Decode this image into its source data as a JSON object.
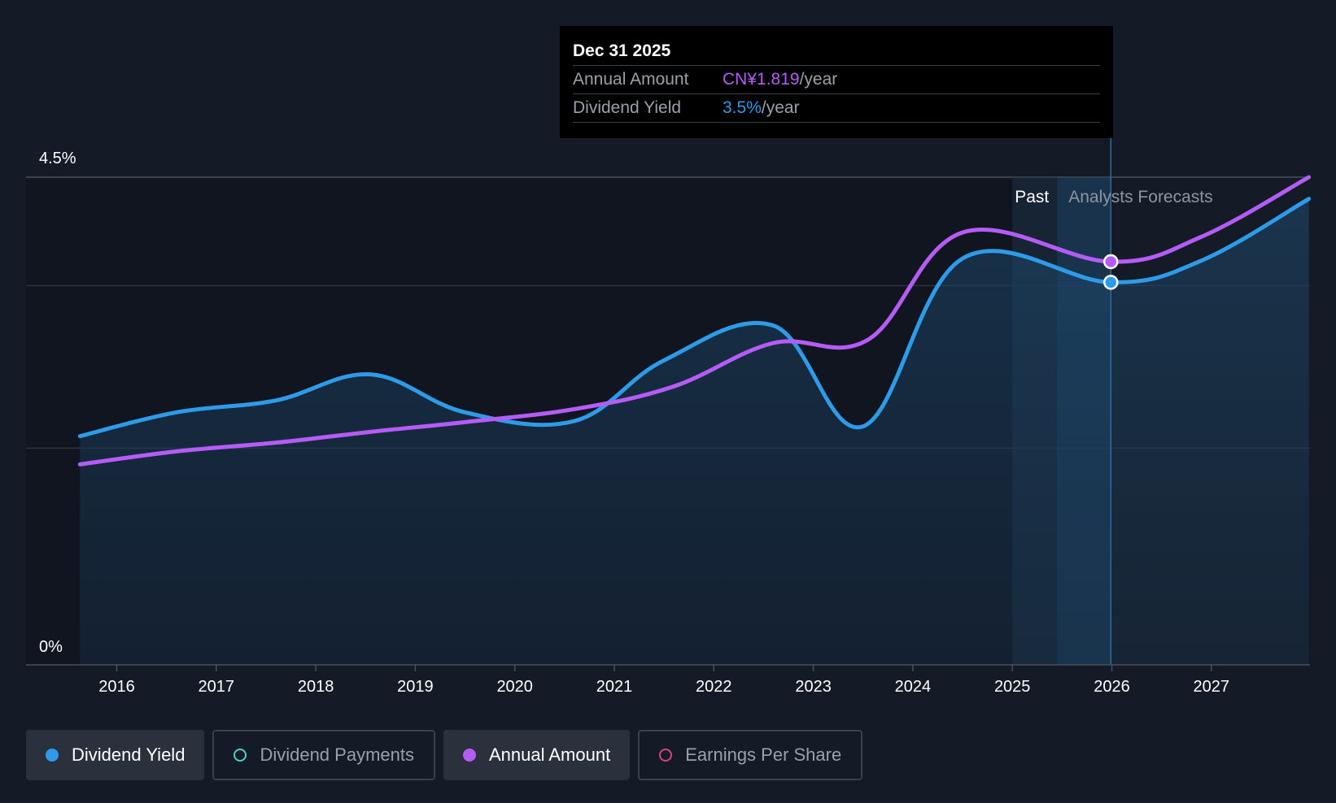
{
  "tooltip": {
    "date": "Dec 31 2025",
    "rows": [
      {
        "label": "Annual Amount",
        "value": "CN¥1.819",
        "unit": "/year"
      },
      {
        "label": "Dividend Yield",
        "value": "3.5%",
        "unit": "/year"
      }
    ]
  },
  "regions": {
    "past": "Past",
    "forecast": "Analysts Forecasts"
  },
  "legend": [
    {
      "label": "Dividend Yield",
      "active": true,
      "color": "#2d9be8",
      "filled": true
    },
    {
      "label": "Dividend Payments",
      "active": false,
      "color": "#4fd1c5",
      "filled": false
    },
    {
      "label": "Annual Amount",
      "active": true,
      "color": "#b45cf5",
      "filled": true
    },
    {
      "label": "Earnings Per Share",
      "active": false,
      "color": "#d6447a",
      "filled": false
    }
  ],
  "colors": {
    "yield": "#2d9be8",
    "amount": "#b45cf5",
    "background": "#151b26"
  },
  "chart_data": {
    "type": "line",
    "x_ticks": [
      "2016",
      "2017",
      "2018",
      "2019",
      "2020",
      "2021",
      "2022",
      "2023",
      "2024",
      "2025",
      "2026",
      "2027"
    ],
    "y_ticks": [
      "0%",
      "4.5%"
    ],
    "ylim": [
      0,
      4.5
    ],
    "xlim": [
      2015.1,
      2027.98
    ],
    "past_forecast_boundary": 2025.45,
    "highlight_x": 2025.99,
    "series": [
      {
        "name": "Dividend Yield",
        "unit": "%",
        "points": [
          [
            2015.63,
            2.11
          ],
          [
            2016.6,
            2.33
          ],
          [
            2017.6,
            2.44
          ],
          [
            2018.55,
            2.68
          ],
          [
            2019.5,
            2.33
          ],
          [
            2020.6,
            2.25
          ],
          [
            2021.5,
            2.81
          ],
          [
            2022.6,
            3.13
          ],
          [
            2023.5,
            2.2
          ],
          [
            2024.5,
            3.75
          ],
          [
            2025.99,
            3.53
          ],
          [
            2026.9,
            3.73
          ],
          [
            2027.98,
            4.3
          ]
        ]
      },
      {
        "name": "Annual Amount",
        "unit": "CN¥",
        "points": [
          [
            2015.63,
            1.85
          ],
          [
            2016.6,
            1.97
          ],
          [
            2017.6,
            2.05
          ],
          [
            2018.55,
            2.15
          ],
          [
            2019.5,
            2.24
          ],
          [
            2020.6,
            2.36
          ],
          [
            2021.6,
            2.57
          ],
          [
            2022.6,
            2.97
          ],
          [
            2023.55,
            3.0
          ],
          [
            2024.5,
            3.99
          ],
          [
            2025.99,
            3.72
          ],
          [
            2026.9,
            3.95
          ],
          [
            2027.98,
            4.5
          ]
        ]
      }
    ]
  }
}
